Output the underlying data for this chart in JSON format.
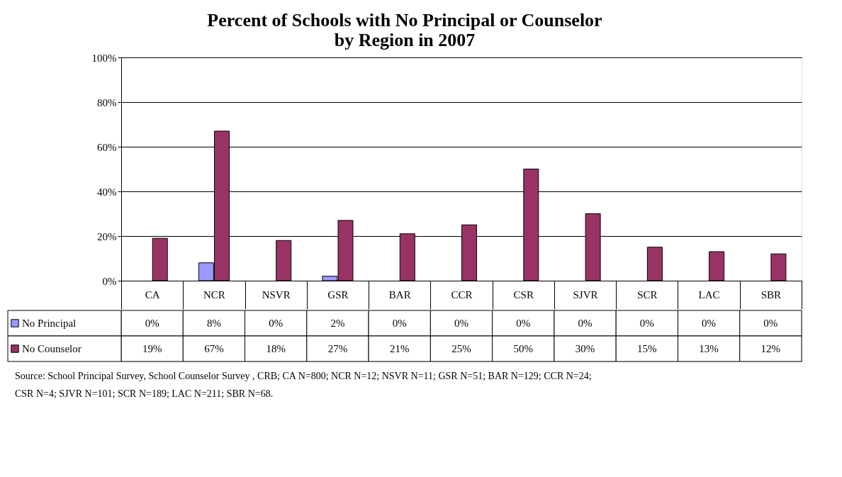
{
  "chart_data": {
    "type": "bar",
    "title": "Percent of Schools with No Principal or Counselor\nby Region in 2007",
    "categories": [
      "CA",
      "NCR",
      "NSVR",
      "GSR",
      "BAR",
      "CCR",
      "CSR",
      "SJVR",
      "SCR",
      "LAC",
      "SBR"
    ],
    "series": [
      {
        "name": "No Principal",
        "color": "#9999ff",
        "values": [
          0,
          8,
          0,
          2,
          0,
          0,
          0,
          0,
          0,
          0,
          0
        ],
        "value_labels": [
          "0%",
          "8%",
          "0%",
          "2%",
          "0%",
          "0%",
          "0%",
          "0%",
          "0%",
          "0%",
          "0%"
        ]
      },
      {
        "name": "No Counselor",
        "color": "#993366",
        "values": [
          19,
          67,
          18,
          27,
          21,
          25,
          50,
          30,
          15,
          13,
          12
        ],
        "value_labels": [
          "19%",
          "67%",
          "18%",
          "27%",
          "21%",
          "25%",
          "50%",
          "30%",
          "15%",
          "13%",
          "12%"
        ]
      }
    ],
    "ylim": [
      0,
      100
    ],
    "yticks": [
      {
        "value": 0,
        "label": "0%"
      },
      {
        "value": 20,
        "label": "20%"
      },
      {
        "value": 40,
        "label": "40%"
      },
      {
        "value": 60,
        "label": "60%"
      },
      {
        "value": 80,
        "label": "80%"
      },
      {
        "value": 100,
        "label": "100%"
      }
    ],
    "grid": "y",
    "legend": "bottom left",
    "annotations": [
      "Source: School Principal Survey, School Counselor Survey , CRB; CA N=800; NCR N=12; NSVR N=11; GSR N=51; BAR N=129; CCR N=24; CSR N=4; SJVR N=101; SCR N=189; LAC N=211; SBR N=68."
    ]
  }
}
